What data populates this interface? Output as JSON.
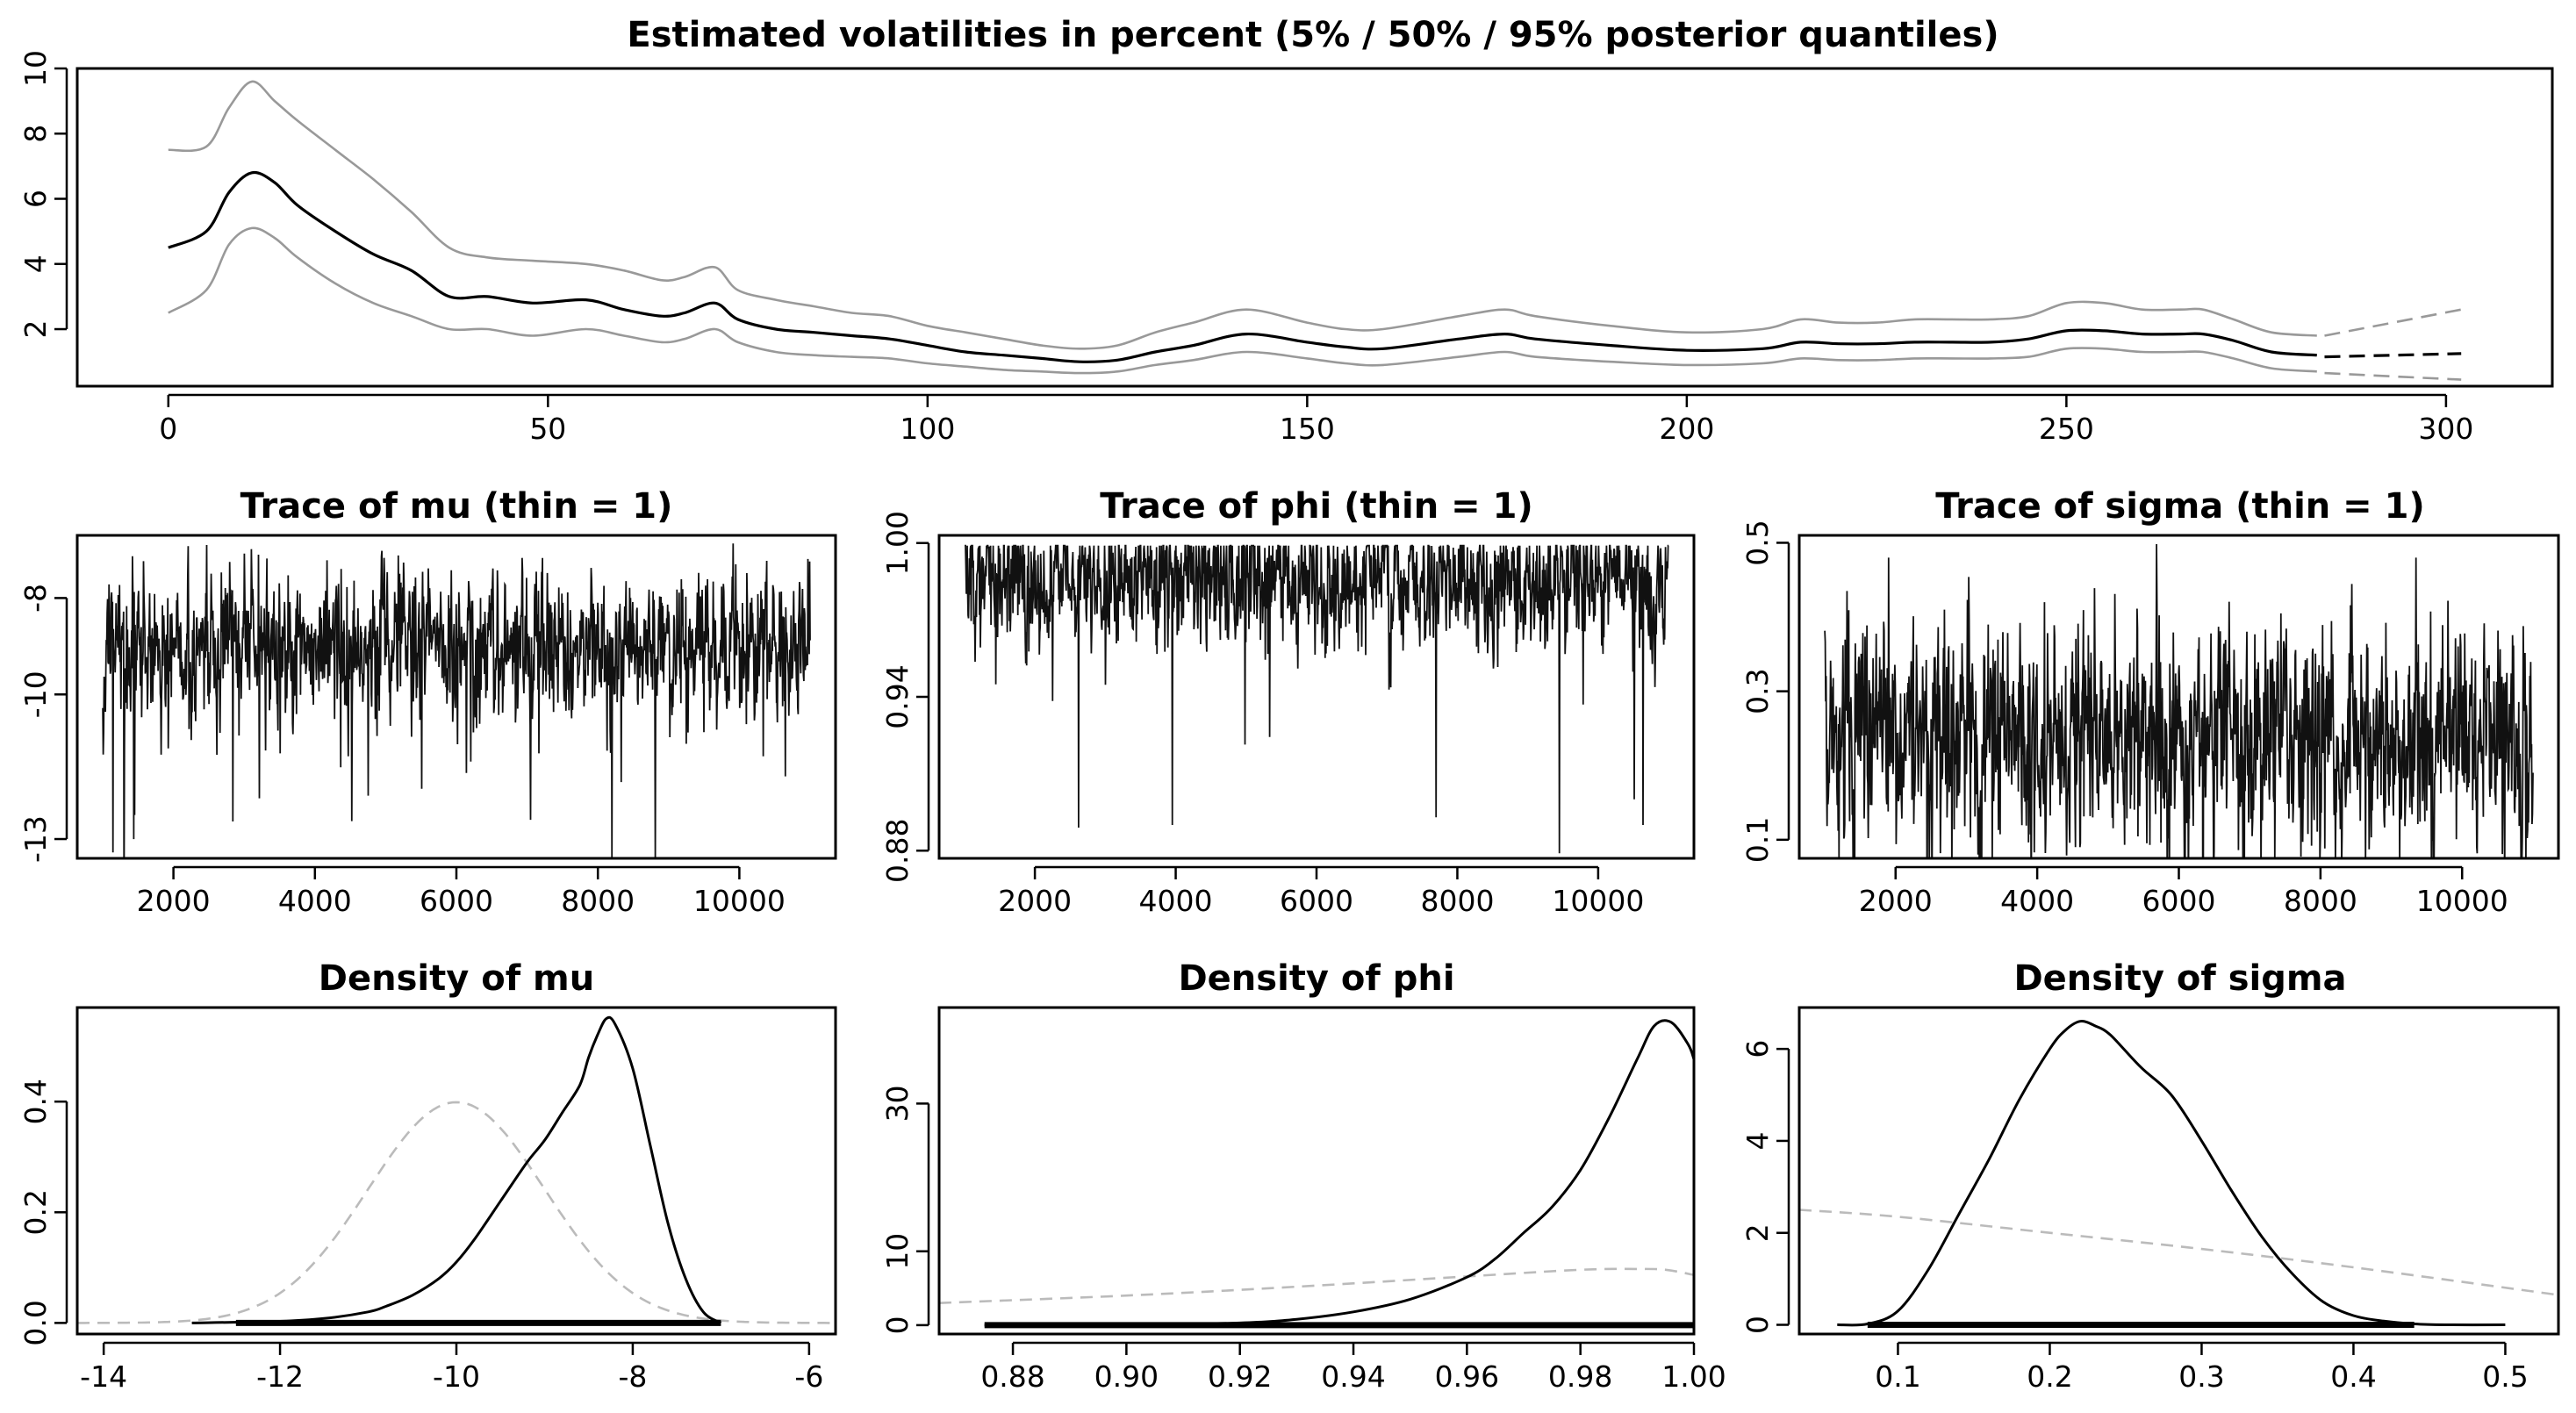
{
  "chart_data": [
    {
      "id": "vol",
      "type": "line",
      "title": "Estimated volatilities in percent (5% / 50% / 95% posterior quantiles)",
      "xlim": [
        -12,
        314
      ],
      "ylim": [
        0.25,
        10
      ],
      "xticks": [
        0,
        50,
        100,
        150,
        200,
        250,
        300
      ],
      "yticks": [
        2,
        4,
        6,
        8,
        10
      ],
      "series": [
        {
          "role": "q95",
          "color": "#999999",
          "x": [
            0,
            5,
            8,
            11,
            14,
            17,
            22,
            27,
            32,
            37,
            42,
            48,
            55,
            60,
            65,
            68,
            72,
            75,
            80,
            85,
            90,
            95,
            100,
            105,
            110,
            115,
            120,
            125,
            130,
            135,
            142,
            150,
            155,
            160,
            170,
            176,
            180,
            190,
            200,
            210,
            215,
            220,
            225,
            230,
            235,
            240,
            245,
            250,
            255,
            260,
            265,
            268,
            272,
            277,
            283
          ],
          "y": [
            7.5,
            7.6,
            8.8,
            9.6,
            9.0,
            8.4,
            7.5,
            6.6,
            5.6,
            4.5,
            4.2,
            4.1,
            4.0,
            3.8,
            3.5,
            3.6,
            3.9,
            3.2,
            2.9,
            2.7,
            2.5,
            2.4,
            2.1,
            1.9,
            1.7,
            1.5,
            1.4,
            1.5,
            1.9,
            2.2,
            2.6,
            2.2,
            2.0,
            2.0,
            2.4,
            2.6,
            2.4,
            2.1,
            1.9,
            2.0,
            2.3,
            2.2,
            2.2,
            2.3,
            2.3,
            2.3,
            2.4,
            2.8,
            2.8,
            2.6,
            2.6,
            2.6,
            2.3,
            1.9,
            1.8
          ]
        },
        {
          "role": "median",
          "color": "#000000",
          "x": [
            0,
            5,
            8,
            11,
            14,
            17,
            22,
            27,
            32,
            37,
            42,
            48,
            55,
            60,
            65,
            68,
            72,
            75,
            80,
            85,
            90,
            95,
            100,
            105,
            110,
            115,
            120,
            125,
            130,
            135,
            142,
            150,
            155,
            160,
            170,
            176,
            180,
            190,
            200,
            210,
            215,
            220,
            225,
            230,
            235,
            240,
            245,
            250,
            255,
            260,
            265,
            268,
            272,
            277,
            283
          ],
          "y": [
            4.5,
            5.0,
            6.2,
            6.8,
            6.5,
            5.8,
            5.0,
            4.3,
            3.8,
            3.0,
            3.0,
            2.8,
            2.9,
            2.6,
            2.4,
            2.5,
            2.8,
            2.3,
            2.0,
            1.9,
            1.8,
            1.7,
            1.5,
            1.3,
            1.2,
            1.1,
            1.0,
            1.05,
            1.3,
            1.5,
            1.85,
            1.6,
            1.45,
            1.4,
            1.7,
            1.85,
            1.7,
            1.5,
            1.35,
            1.4,
            1.6,
            1.55,
            1.55,
            1.6,
            1.6,
            1.6,
            1.7,
            1.95,
            1.95,
            1.85,
            1.85,
            1.85,
            1.65,
            1.3,
            1.2
          ]
        },
        {
          "role": "q05",
          "color": "#999999",
          "x": [
            0,
            5,
            8,
            11,
            14,
            17,
            22,
            27,
            32,
            37,
            42,
            48,
            55,
            60,
            65,
            68,
            72,
            75,
            80,
            85,
            90,
            95,
            100,
            105,
            110,
            115,
            120,
            125,
            130,
            135,
            142,
            150,
            155,
            160,
            170,
            176,
            180,
            190,
            200,
            210,
            215,
            220,
            225,
            230,
            235,
            240,
            245,
            250,
            255,
            260,
            265,
            268,
            272,
            277,
            283
          ],
          "y": [
            2.5,
            3.2,
            4.6,
            5.1,
            4.8,
            4.2,
            3.4,
            2.8,
            2.4,
            2.0,
            2.0,
            1.8,
            2.0,
            1.8,
            1.6,
            1.7,
            2.0,
            1.6,
            1.3,
            1.2,
            1.15,
            1.1,
            0.95,
            0.85,
            0.75,
            0.7,
            0.65,
            0.7,
            0.9,
            1.05,
            1.3,
            1.1,
            0.95,
            0.9,
            1.15,
            1.3,
            1.15,
            1.0,
            0.9,
            0.95,
            1.1,
            1.05,
            1.05,
            1.1,
            1.1,
            1.1,
            1.15,
            1.4,
            1.4,
            1.3,
            1.3,
            1.3,
            1.1,
            0.8,
            0.7
          ]
        }
      ],
      "forecast": [
        {
          "role": "q95",
          "color": "#999999",
          "x": [
            284,
            302
          ],
          "y": [
            1.8,
            2.6
          ]
        },
        {
          "role": "median",
          "color": "#000000",
          "x": [
            284,
            302
          ],
          "y": [
            1.15,
            1.25
          ]
        },
        {
          "role": "q05",
          "color": "#999999",
          "x": [
            284,
            302
          ],
          "y": [
            0.65,
            0.45
          ]
        }
      ]
    },
    {
      "id": "trace_mu",
      "type": "line",
      "title": "Trace of mu (thin = 1)",
      "xlim": [
        640,
        11360
      ],
      "ylim": [
        -13.4,
        -6.7
      ],
      "xticks": [
        2000,
        4000,
        6000,
        8000,
        10000
      ],
      "yticks": [
        -8,
        -10,
        -13
      ],
      "x_range": [
        1001,
        11000
      ],
      "center": -9.0,
      "spread": 0.5,
      "extremes": [
        {
          "x": 1450,
          "y": -12.5
        },
        {
          "x": 2470,
          "y": -6.9
        },
        {
          "x": 3200,
          "y": -7.1
        },
        {
          "x": 4750,
          "y": -12.1
        },
        {
          "x": 7050,
          "y": -12.6
        },
        {
          "x": 8200,
          "y": -13.4
        },
        {
          "x": 9950,
          "y": -7.3
        },
        {
          "x": 10650,
          "y": -11.7
        }
      ],
      "seed": 11
    },
    {
      "id": "trace_phi",
      "type": "line",
      "title": "Trace of phi (thin = 1)",
      "xlim": [
        640,
        11360
      ],
      "ylim": [
        0.877,
        1.003
      ],
      "xticks": [
        2000,
        4000,
        6000,
        8000,
        10000
      ],
      "yticks": [
        1.0,
        0.94,
        0.88
      ],
      "x_range": [
        1001,
        11000
      ],
      "center": 0.985,
      "spread": 0.009,
      "cap": 0.999,
      "extremes": [
        {
          "x": 2620,
          "y": 0.889
        },
        {
          "x": 3950,
          "y": 0.89
        },
        {
          "x": 7700,
          "y": 0.893
        },
        {
          "x": 9450,
          "y": 0.879
        },
        {
          "x": 10640,
          "y": 0.89
        }
      ],
      "seed": 23
    },
    {
      "id": "trace_sigma",
      "type": "line",
      "title": "Trace of sigma (thin = 1)",
      "xlim": [
        640,
        11360
      ],
      "ylim": [
        0.075,
        0.51
      ],
      "xticks": [
        2000,
        4000,
        6000,
        8000,
        10000
      ],
      "yticks": [
        0.1,
        0.3,
        0.5
      ],
      "x_range": [
        1001,
        11000
      ],
      "center": 0.24,
      "spread": 0.05,
      "extremes": [
        {
          "x": 1900,
          "y": 0.48
        },
        {
          "x": 4100,
          "y": 0.42
        },
        {
          "x": 9350,
          "y": 0.48
        },
        {
          "x": 4600,
          "y": 0.09
        },
        {
          "x": 6500,
          "y": 0.085
        }
      ],
      "seed": 37
    },
    {
      "id": "dens_mu",
      "type": "line",
      "title": "Density of mu",
      "xlim": [
        -14.3,
        -5.7
      ],
      "ylim": [
        -0.02,
        0.57
      ],
      "xticks": [
        -14,
        -12,
        -10,
        -8,
        -6
      ],
      "yticks": [
        0.0,
        0.2,
        0.4
      ],
      "posterior": {
        "x": [
          -13.0,
          -12.0,
          -11.5,
          -11.0,
          -10.8,
          -10.5,
          -10.2,
          -10.0,
          -9.8,
          -9.5,
          -9.2,
          -9.0,
          -8.8,
          -8.6,
          -8.5,
          -8.4,
          -8.3,
          -8.2,
          -8.0,
          -7.8,
          -7.6,
          -7.4,
          -7.2,
          -7.0
        ],
        "y": [
          0.0,
          0.003,
          0.008,
          0.02,
          0.03,
          0.05,
          0.08,
          0.11,
          0.15,
          0.22,
          0.29,
          0.33,
          0.38,
          0.43,
          0.48,
          0.52,
          0.55,
          0.54,
          0.46,
          0.32,
          0.18,
          0.08,
          0.02,
          0.0
        ]
      },
      "prior": {
        "mean": -10,
        "sd": 1,
        "x_range": [
          -14.3,
          -5.7
        ]
      },
      "rug": [
        -12.5,
        -7.0
      ]
    },
    {
      "id": "dens_phi",
      "type": "line",
      "title": "Density of phi",
      "xlim": [
        0.867,
        1.0
      ],
      "ylim": [
        -1.2,
        43
      ],
      "xticks": [
        0.88,
        0.9,
        0.92,
        0.94,
        0.96,
        0.98,
        1.0
      ],
      "yticks": [
        0,
        10,
        30
      ],
      "posterior": {
        "x": [
          0.875,
          0.9,
          0.92,
          0.93,
          0.94,
          0.95,
          0.96,
          0.965,
          0.97,
          0.975,
          0.98,
          0.985,
          0.99,
          0.993,
          0.996,
          0.999,
          1.0
        ],
        "y": [
          0.0,
          0.05,
          0.3,
          0.8,
          1.8,
          3.5,
          6.5,
          9.0,
          12.5,
          16.0,
          21.0,
          28.0,
          36.0,
          40.5,
          41.0,
          38.0,
          36.0
        ]
      },
      "prior": {
        "x": [
          0.867,
          0.9,
          0.93,
          0.96,
          0.98,
          0.99,
          0.995,
          1.0
        ],
        "y": [
          3.0,
          4.0,
          5.2,
          6.6,
          7.5,
          7.6,
          7.5,
          6.8
        ]
      },
      "rug": [
        0.875,
        1.0
      ]
    },
    {
      "id": "dens_sigma",
      "type": "line",
      "title": "Density of sigma",
      "xlim": [
        0.035,
        0.535
      ],
      "ylim": [
        -0.2,
        6.9
      ],
      "xticks": [
        0.1,
        0.2,
        0.3,
        0.4,
        0.5
      ],
      "yticks": [
        0,
        2,
        4,
        6
      ],
      "posterior": {
        "x": [
          0.06,
          0.08,
          0.1,
          0.12,
          0.14,
          0.16,
          0.18,
          0.2,
          0.21,
          0.22,
          0.23,
          0.24,
          0.26,
          0.28,
          0.3,
          0.32,
          0.34,
          0.36,
          0.38,
          0.4,
          0.42,
          0.44,
          0.46,
          0.5
        ],
        "y": [
          0.0,
          0.02,
          0.3,
          1.2,
          2.4,
          3.6,
          4.9,
          6.0,
          6.4,
          6.6,
          6.5,
          6.3,
          5.6,
          5.0,
          4.0,
          2.9,
          1.9,
          1.1,
          0.5,
          0.2,
          0.08,
          0.02,
          0.0,
          0.0
        ]
      },
      "prior": {
        "x": [
          0.035,
          0.1,
          0.2,
          0.3,
          0.4,
          0.535
        ],
        "y": [
          2.5,
          2.35,
          2.0,
          1.65,
          1.25,
          0.65
        ]
      },
      "rug": [
        0.08,
        0.44
      ]
    }
  ]
}
